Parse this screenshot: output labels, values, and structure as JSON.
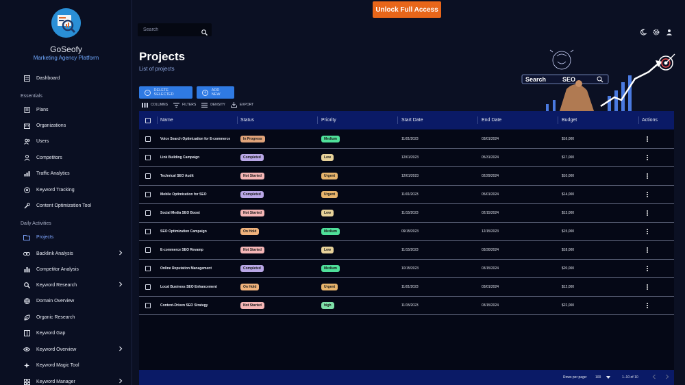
{
  "app": {
    "name": "GoSeofy",
    "subtitle": "Marketing Agency Platform"
  },
  "colors": {
    "accent": "#2f7ae3",
    "unlock": "#e8661a",
    "header": "#0a1a66"
  },
  "header": {
    "unlock_label": "Unlock Full Access",
    "search_placeholder": "Search"
  },
  "sidebar": {
    "dashboard": "Dashboard",
    "essentials_label": "Essentials",
    "essentials": [
      "Plans",
      "Organizations",
      "Users",
      "Competitors",
      "Traffic Analytics",
      "Keyword Tracking",
      "Content Optimization Tool"
    ],
    "daily_label": "Daily Activities",
    "daily": [
      "Projects",
      "Backlink Analysis",
      "Competitor Analysis",
      "Keyword Research",
      "Domain Overview",
      "Organic Research",
      "Keyword Gap",
      "Keyword Overview",
      "Keyword Magic Tool",
      "Keyword Manager"
    ]
  },
  "page": {
    "title": "Projects",
    "subtitle": "List of projects"
  },
  "actions": {
    "delete_selected": "DELETE SELECTED",
    "add_new": "ADD NEW"
  },
  "toolbar": {
    "columns": "COLUMNS",
    "filters": "FILTERS",
    "density": "DENSITY",
    "export": "EXPORT"
  },
  "hero": {
    "search_text": "Search",
    "seo_text": "SEO"
  },
  "table": {
    "columns": [
      "Name",
      "Status",
      "Priority",
      "Start Date",
      "End Date",
      "Budget",
      "Actions"
    ],
    "rows": [
      {
        "name": "Voice Search Optimization for E-commerce",
        "status": "In Progress",
        "priority": "Medium",
        "start": "11/01/2023",
        "end": "03/01/2024",
        "budget": "$16,000"
      },
      {
        "name": "Link Building Campaign",
        "status": "Completed",
        "priority": "Low",
        "start": "12/01/2023",
        "end": "05/31/2024",
        "budget": "$17,000"
      },
      {
        "name": "Technical SEO Audit",
        "status": "Not Started",
        "priority": "Urgent",
        "start": "12/01/2023",
        "end": "02/29/2024",
        "budget": "$10,000"
      },
      {
        "name": "Mobile Optimization for SEO",
        "status": "Completed",
        "priority": "Urgent",
        "start": "11/01/2023",
        "end": "05/01/2024",
        "budget": "$14,000"
      },
      {
        "name": "Social Media SEO Boost",
        "status": "Not Started",
        "priority": "Low",
        "start": "11/15/2023",
        "end": "02/15/2024",
        "budget": "$13,000"
      },
      {
        "name": "SEO Optimization Campaign",
        "status": "On Hold",
        "priority": "Medium",
        "start": "09/15/2023",
        "end": "12/15/2023",
        "budget": "$15,000"
      },
      {
        "name": "E-commerce SEO Revamp",
        "status": "Not Started",
        "priority": "Low",
        "start": "11/15/2023",
        "end": "03/30/2024",
        "budget": "$18,000"
      },
      {
        "name": "Online Reputation Management",
        "status": "Completed",
        "priority": "Medium",
        "start": "10/15/2023",
        "end": "03/15/2024",
        "budget": "$20,000"
      },
      {
        "name": "Local Business SEO Enhancement",
        "status": "On Hold",
        "priority": "Urgent",
        "start": "11/01/2023",
        "end": "03/01/2024",
        "budget": "$12,000"
      },
      {
        "name": "Content-Driven SEO Strategy",
        "status": "Not Started",
        "priority": "high",
        "start": "11/15/2023",
        "end": "03/15/2024",
        "budget": "$22,000"
      }
    ],
    "status_colors": {
      "In Progress": "#e0a37a",
      "Completed": "#b9a7e6",
      "Not Started": "#f5b6b6",
      "On Hold": "#f0b27c"
    },
    "priority_colors": {
      "Medium": "#4fe09a",
      "Low": "#e8d29a",
      "Urgent": "#e8b46c",
      "high": "#7ee0a8"
    }
  },
  "footer": {
    "rows_label": "Rows per page:",
    "rows_value": "100",
    "range": "1–10 of 10"
  }
}
